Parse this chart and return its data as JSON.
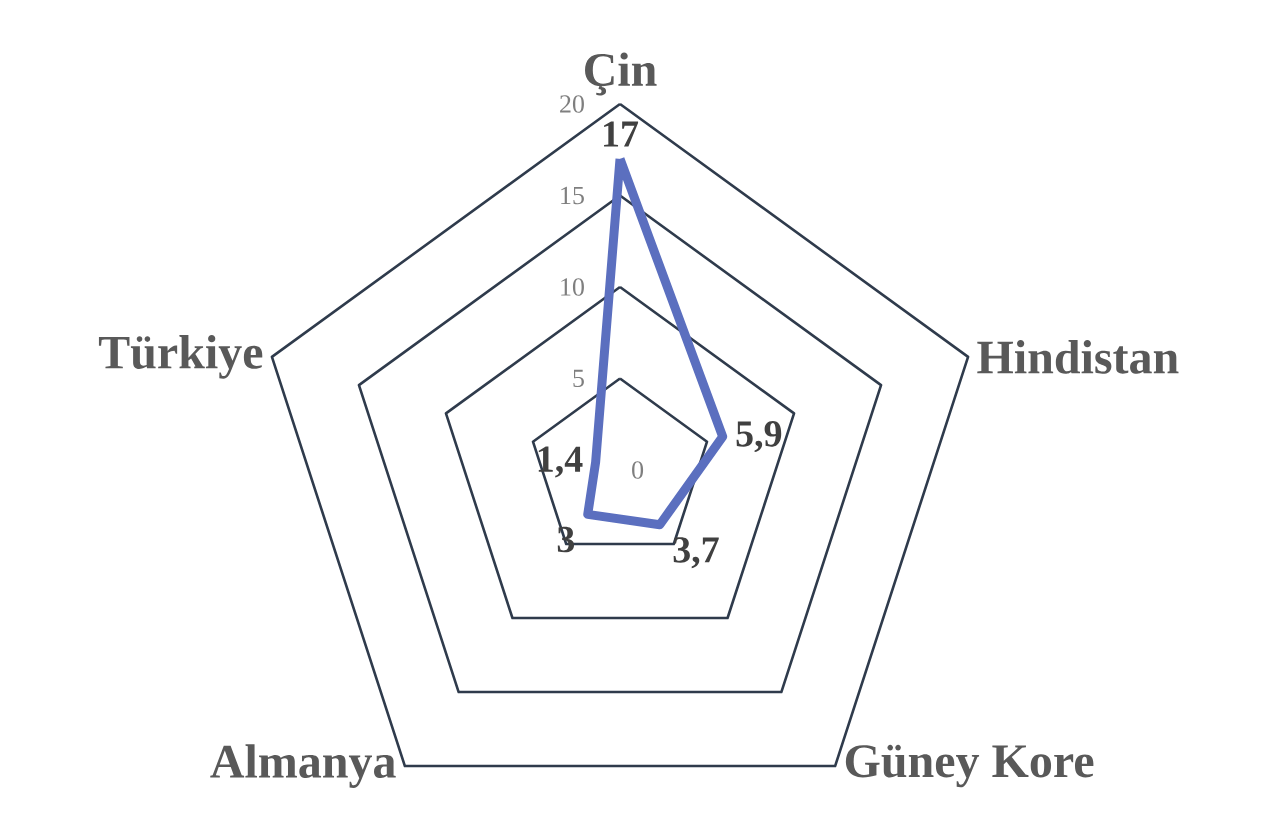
{
  "chart_data": {
    "type": "radar",
    "categories": [
      "Çin",
      "Hindistan",
      "Güney Kore",
      "Almanya",
      "Türkiye"
    ],
    "series": [
      {
        "color": "#5b6fbf",
        "values": [
          17,
          5.9,
          3.7,
          3,
          1.4
        ],
        "value_labels": [
          "17",
          "5,9",
          "3,7",
          "3",
          "1,4"
        ]
      }
    ],
    "ylim": [
      0,
      20
    ],
    "yticks": [
      0,
      5,
      10,
      15,
      20
    ],
    "grid": true
  }
}
